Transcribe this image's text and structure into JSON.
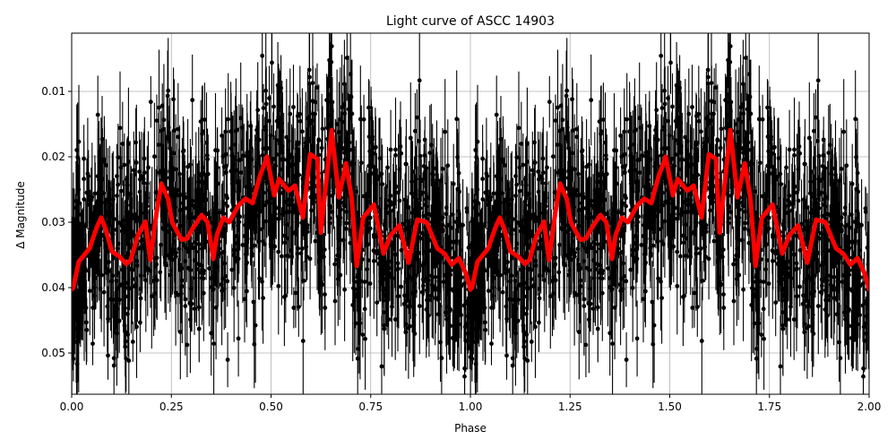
{
  "chart_data": {
    "type": "line",
    "title": "Light curve of ASCC 14903",
    "xlabel": "Phase",
    "ylabel": "Δ Magnitude",
    "xlim": [
      0.0,
      2.0
    ],
    "ylim": [
      0.0563,
      0.0011
    ],
    "y_inverted": true,
    "grid": true,
    "xticks": [
      "0.00",
      "0.25",
      "0.50",
      "0.75",
      "1.00",
      "1.25",
      "1.50",
      "1.75",
      "2.00"
    ],
    "xtick_values": [
      0.0,
      0.25,
      0.5,
      0.75,
      1.0,
      1.25,
      1.5,
      1.75,
      2.0
    ],
    "yticks": [
      "0.01",
      "0.02",
      "0.03",
      "0.04",
      "0.05"
    ],
    "ytick_values": [
      0.01,
      0.02,
      0.03,
      0.04,
      0.05
    ],
    "series": [
      {
        "name": "observations",
        "style": "black points with error bars",
        "color": "#000000",
        "description": "dense phase-folded photometry, scatter roughly 0.005–0.056 mag with error bars"
      },
      {
        "name": "smoothed model",
        "style": "thick line",
        "color": "#ff0000",
        "x": [
          0.0,
          0.004,
          0.018,
          0.025,
          0.045,
          0.056,
          0.065,
          0.074,
          0.085,
          0.101,
          0.119,
          0.137,
          0.148,
          0.166,
          0.185,
          0.197,
          0.213,
          0.225,
          0.242,
          0.252,
          0.276,
          0.29,
          0.303,
          0.326,
          0.341,
          0.355,
          0.364,
          0.38,
          0.395,
          0.418,
          0.436,
          0.454,
          0.463,
          0.472,
          0.49,
          0.508,
          0.52,
          0.544,
          0.56,
          0.58,
          0.598,
          0.616,
          0.625,
          0.652,
          0.67,
          0.688,
          0.702,
          0.715,
          0.731,
          0.758,
          0.782,
          0.8,
          0.822,
          0.845,
          0.867,
          0.89,
          0.917,
          0.935,
          0.953,
          0.971,
          0.99,
          1.0
        ],
        "values": [
          0.0403,
          0.04,
          0.036,
          0.0355,
          0.034,
          0.032,
          0.0305,
          0.0293,
          0.031,
          0.0345,
          0.0352,
          0.0364,
          0.0358,
          0.032,
          0.0299,
          0.0358,
          0.0285,
          0.0241,
          0.0265,
          0.03,
          0.0327,
          0.0325,
          0.031,
          0.0289,
          0.03,
          0.0356,
          0.032,
          0.0293,
          0.03,
          0.0275,
          0.0264,
          0.0271,
          0.025,
          0.023,
          0.02,
          0.0259,
          0.0234,
          0.0252,
          0.0244,
          0.0293,
          0.0196,
          0.0203,
          0.0316,
          0.0159,
          0.0262,
          0.021,
          0.0262,
          0.0367,
          0.0293,
          0.0273,
          0.0348,
          0.032,
          0.0305,
          0.0362,
          0.0296,
          0.03,
          0.034,
          0.0348,
          0.0365,
          0.0355,
          0.038,
          0.0403
        ]
      }
    ]
  }
}
